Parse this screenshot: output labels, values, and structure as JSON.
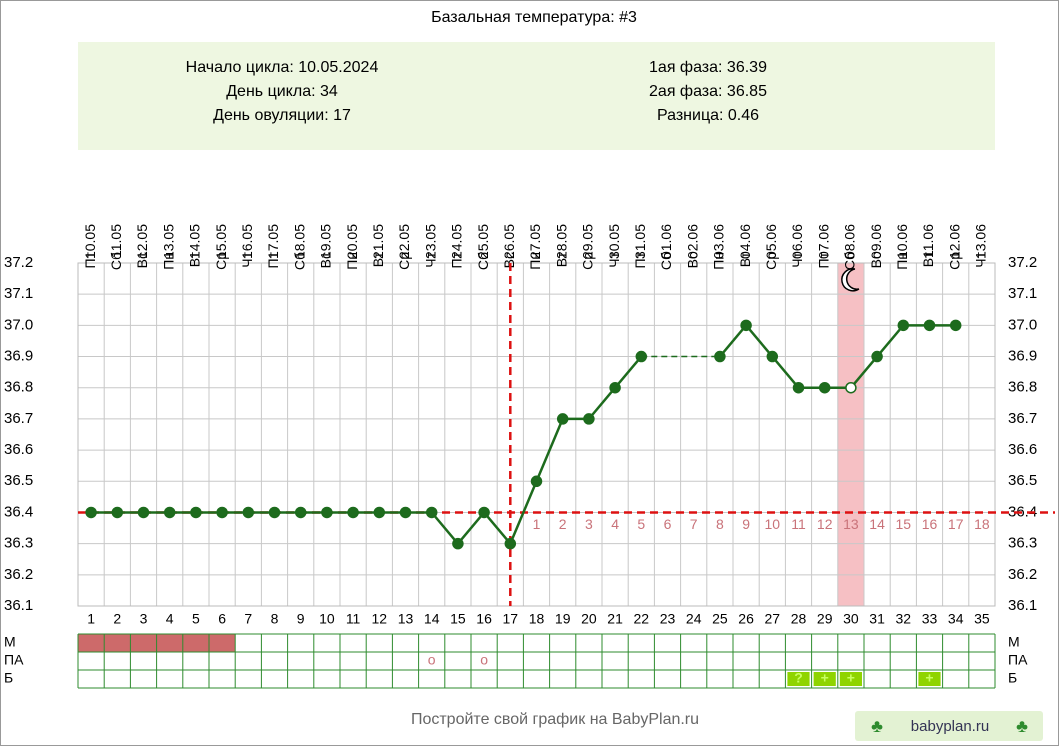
{
  "chart_data": {
    "type": "line",
    "title": "Базальная температура: #3",
    "info_left": [
      "Начало цикла: 10.05.2024",
      "День цикла: 34",
      "День овуляции: 17"
    ],
    "info_right": [
      "1ая фаза: 36.39",
      "2ая фаза: 36.85",
      "Разница: 0.46"
    ],
    "categories": [
      1,
      2,
      3,
      4,
      5,
      6,
      7,
      8,
      9,
      10,
      11,
      12,
      13,
      14,
      15,
      16,
      17,
      18,
      19,
      20,
      21,
      22,
      23,
      24,
      25,
      26,
      27,
      28,
      29,
      30,
      31,
      32,
      33,
      34,
      35
    ],
    "dates": [
      "10.05",
      "11.05",
      "12.05",
      "13.05",
      "14.05",
      "15.05",
      "16.05",
      "17.05",
      "18.05",
      "19.05",
      "20.05",
      "21.05",
      "22.05",
      "23.05",
      "24.05",
      "25.05",
      "26.05",
      "27.05",
      "28.05",
      "29.05",
      "30.05",
      "31.05",
      "01.06",
      "02.06",
      "03.06",
      "04.06",
      "05.06",
      "06.06",
      "07.06",
      "08.06",
      "09.06",
      "10.06",
      "11.06",
      "12.06",
      "13.06"
    ],
    "weekdays": [
      "Пт",
      "Сб",
      "Вс",
      "Пн",
      "Вт",
      "Ср",
      "Чт",
      "Пт",
      "Сб",
      "Вс",
      "Пн",
      "Вт",
      "Ср",
      "Чт",
      "Пт",
      "Сб",
      "Вс",
      "Пн",
      "Вт",
      "Ср",
      "Чт",
      "Пт",
      "Сб",
      "Вс",
      "Пн",
      "Вт",
      "Ср",
      "Чт",
      "Пт",
      "Сб",
      "Вс",
      "Пн",
      "Вт",
      "Ср",
      "Чт"
    ],
    "values": [
      36.4,
      36.4,
      36.4,
      36.4,
      36.4,
      36.4,
      36.4,
      36.4,
      36.4,
      36.4,
      36.4,
      36.4,
      36.4,
      36.4,
      36.3,
      36.4,
      36.3,
      36.5,
      36.7,
      36.7,
      36.8,
      36.9,
      null,
      null,
      36.9,
      37.0,
      36.9,
      36.8,
      36.8,
      36.8,
      36.9,
      37.0,
      37.0,
      37.0,
      null
    ],
    "color": "#1d6b1d",
    "open_points": [
      30
    ],
    "ylim": [
      36.1,
      37.2
    ],
    "yticks": [
      36.1,
      36.2,
      36.3,
      36.4,
      36.5,
      36.6,
      36.7,
      36.8,
      36.9,
      {
        "value": 37.0,
        "label": "37.0"
      },
      37.1,
      37.2
    ],
    "grid": true,
    "cover_line": 36.4,
    "ovulation_day": 17,
    "phase_days": [
      1,
      2,
      3,
      4,
      5,
      6,
      7,
      8,
      9,
      10,
      11,
      12,
      13,
      14,
      15,
      16,
      17,
      18
    ],
    "highlight_day": 30,
    "rows": [
      {
        "label": "М",
        "filled": [
          1,
          2,
          3,
          4,
          5,
          6
        ]
      },
      {
        "label": "ПА",
        "marks": [
          {
            "day": 14,
            "text": "o"
          },
          {
            "day": 16,
            "text": "o"
          }
        ]
      },
      {
        "label": "Б",
        "marks": [
          {
            "day": 28,
            "text": "?"
          },
          {
            "day": 29,
            "text": "+"
          },
          {
            "day": 30,
            "text": "+"
          },
          {
            "day": 33,
            "text": "+"
          }
        ]
      }
    ],
    "footer": "Постройте свой график на BabyPlan.ru",
    "badge": "babyplan.ru"
  }
}
